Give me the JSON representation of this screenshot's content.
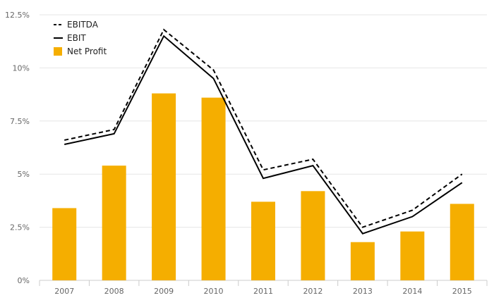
{
  "chart_data": {
    "type": "bar",
    "categories": [
      "2007",
      "2008",
      "2009",
      "2010",
      "2011",
      "2012",
      "2013",
      "2014",
      "2015"
    ],
    "y_ticks": [
      "0%",
      "2.5%",
      "5%",
      "7.5%",
      "10%",
      "12.5%"
    ],
    "y_tick_values": [
      0,
      2.5,
      5,
      7.5,
      10,
      12.5
    ],
    "ylim": [
      0,
      12.5
    ],
    "grid": true,
    "legend_position": "top-left",
    "series": [
      {
        "name": "EBITDA",
        "type": "line",
        "style": "dashed",
        "color": "#000000",
        "values": [
          6.6,
          7.1,
          11.8,
          9.9,
          5.2,
          5.7,
          2.5,
          3.3,
          5.0
        ]
      },
      {
        "name": "EBIT",
        "type": "line",
        "style": "solid",
        "color": "#000000",
        "values": [
          6.4,
          6.9,
          11.5,
          9.5,
          4.8,
          5.4,
          2.2,
          3.0,
          4.6
        ]
      },
      {
        "name": "Net Profit",
        "type": "bar",
        "color": "#F5AE00",
        "values": [
          3.4,
          5.4,
          8.8,
          8.6,
          3.7,
          4.2,
          1.8,
          2.3,
          3.6
        ]
      }
    ]
  }
}
